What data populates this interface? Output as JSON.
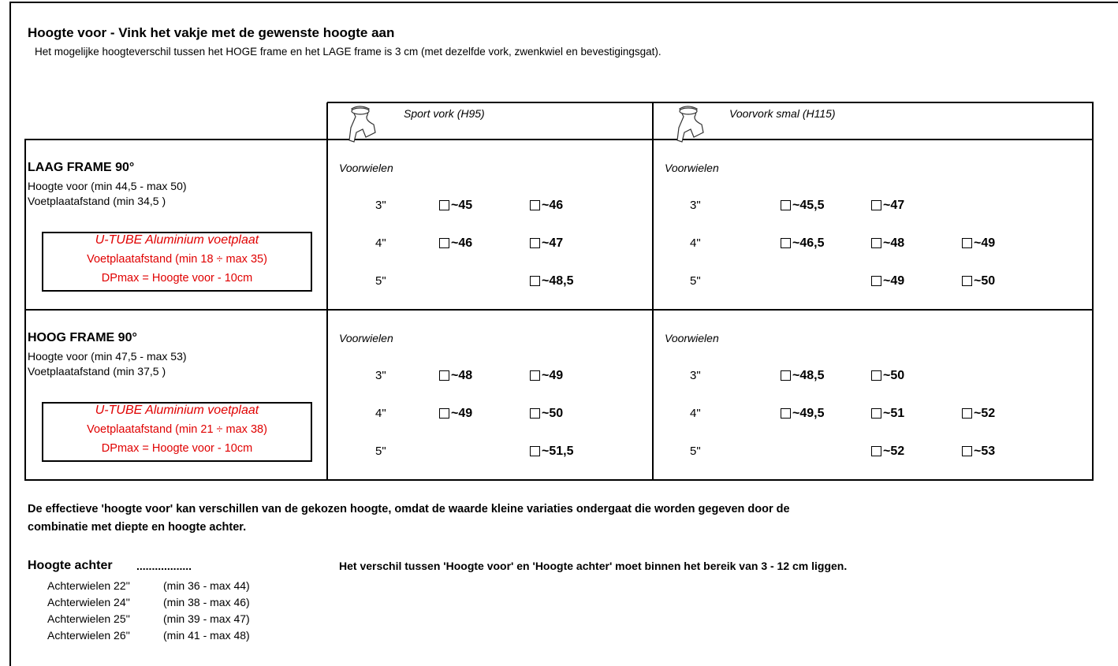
{
  "header": {
    "title": "Hoogte voor - Vink het vakje met de gewenste hoogte aan",
    "subtitle": "Het mogelijke hoogteverschil tussen het HOGE frame en het LAGE frame is 3 cm (met dezelfde vork, zwenkwiel en bevestigingsgat)."
  },
  "table": {
    "columns": [
      {
        "label": "Sport vork (H95)"
      },
      {
        "label": "Voorvork smal (H115)"
      }
    ],
    "rows": [
      {
        "title": "LAAG FRAME 90°",
        "lines": [
          "Hoogte voor (min 44,5 - max 50)",
          "Voetplaatafstand (min 34,5 )"
        ],
        "note": [
          "U-TUBE Aluminium voetplaat",
          "Voetplaatafstand (min 18 ÷ max 35)",
          "DPmax = Hoogte voor - 10cm"
        ],
        "cells": [
          {
            "heading": "Voorwielen",
            "wheels": [
              {
                "size": "3\"",
                "options": [
                  "~45",
                  "~46",
                  null
                ]
              },
              {
                "size": "4\"",
                "options": [
                  "~46",
                  "~47",
                  null
                ]
              },
              {
                "size": "5\"",
                "options": [
                  null,
                  "~48,5",
                  null
                ]
              }
            ]
          },
          {
            "heading": "Voorwielen",
            "wheels": [
              {
                "size": "3\"",
                "options": [
                  "~45,5",
                  "~47",
                  null
                ]
              },
              {
                "size": "4\"",
                "options": [
                  "~46,5",
                  "~48",
                  "~49"
                ]
              },
              {
                "size": "5\"",
                "options": [
                  null,
                  "~49",
                  "~50"
                ]
              }
            ]
          }
        ]
      },
      {
        "title": "HOOG FRAME 90°",
        "lines": [
          "Hoogte voor (min 47,5 - max 53)",
          "Voetplaatafstand (min 37,5 )"
        ],
        "note": [
          "U-TUBE Aluminium voetplaat",
          "Voetplaatafstand (min 21 ÷ max 38)",
          "DPmax = Hoogte voor - 10cm"
        ],
        "cells": [
          {
            "heading": "Voorwielen",
            "wheels": [
              {
                "size": "3\"",
                "options": [
                  "~48",
                  "~49",
                  null
                ]
              },
              {
                "size": "4\"",
                "options": [
                  "~49",
                  "~50",
                  null
                ]
              },
              {
                "size": "5\"",
                "options": [
                  null,
                  "~51,5",
                  null
                ]
              }
            ]
          },
          {
            "heading": "Voorwielen",
            "wheels": [
              {
                "size": "3\"",
                "options": [
                  "~48,5",
                  "~50",
                  null
                ]
              },
              {
                "size": "4\"",
                "options": [
                  "~49,5",
                  "~51",
                  "~52"
                ]
              },
              {
                "size": "5\"",
                "options": [
                  null,
                  "~52",
                  "~53"
                ]
              }
            ]
          }
        ]
      }
    ]
  },
  "footer": {
    "note": [
      "De effectieve 'hoogte voor' kan verschillen van de gekozen hoogte, omdat de waarde kleine variaties ondergaat die worden gegeven door de",
      "combinatie met diepte en hoogte achter."
    ],
    "rear_title": "Hoogte achter",
    "rear_dots": "..................",
    "rear_message": "Het verschil tussen 'Hoogte voor' en 'Hoogte achter' moet binnen het bereik van 3 - 12 cm liggen.",
    "rear_wheels": [
      {
        "label": "Achterwielen 22''",
        "range": "(min 36 - max 44)"
      },
      {
        "label": "Achterwielen 24''",
        "range": "(min 38 - max 46)"
      },
      {
        "label": "Achterwielen 25''",
        "range": "(min 39 - max 47)"
      },
      {
        "label": "Achterwielen 26''",
        "range": "(min 41 - max 48)"
      }
    ]
  }
}
